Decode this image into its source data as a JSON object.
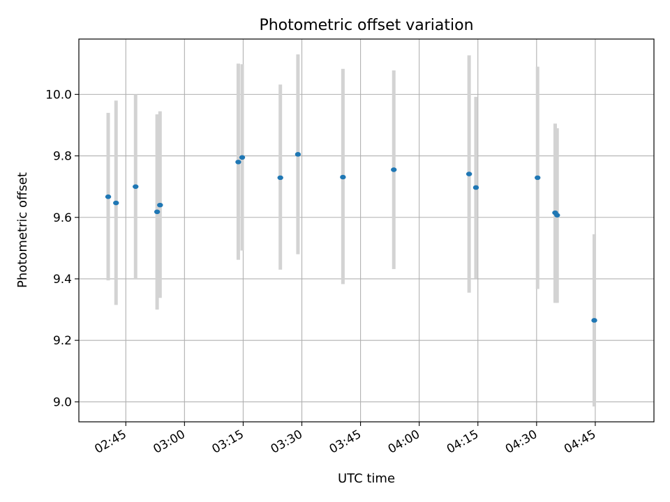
{
  "chart_data": {
    "type": "scatter",
    "title": "Photometric offset variation",
    "xlabel": "UTC time",
    "ylabel": "Photometric offset",
    "xlim": [
      "02:33",
      "05:00"
    ],
    "ylim": [
      8.935,
      10.18
    ],
    "x_ticks": [
      "02:45",
      "03:00",
      "03:15",
      "03:30",
      "03:45",
      "04:00",
      "04:15",
      "04:30",
      "04:45"
    ],
    "y_ticks": [
      "9.0",
      "9.2",
      "9.4",
      "9.6",
      "9.8",
      "10.0"
    ],
    "grid": true,
    "point_color": "#1f77b4",
    "errorbar_color": "#d3d3d3",
    "points": [
      {
        "time": "02:40:30",
        "y": 9.667,
        "err_low": 9.395,
        "err_high": 9.94
      },
      {
        "time": "02:42:30",
        "y": 9.647,
        "err_low": 9.315,
        "err_high": 9.98
      },
      {
        "time": "02:47:30",
        "y": 9.7,
        "err_low": 9.4,
        "err_high": 10.0
      },
      {
        "time": "02:53:00",
        "y": 9.618,
        "err_low": 9.3,
        "err_high": 9.935
      },
      {
        "time": "02:53:45",
        "y": 9.64,
        "err_low": 9.338,
        "err_high": 9.945
      },
      {
        "time": "03:13:45",
        "y": 9.78,
        "err_low": 9.462,
        "err_high": 10.1
      },
      {
        "time": "03:14:45",
        "y": 9.795,
        "err_low": 9.492,
        "err_high": 10.098
      },
      {
        "time": "03:24:30",
        "y": 9.729,
        "err_low": 9.43,
        "err_high": 10.032
      },
      {
        "time": "03:29:00",
        "y": 9.805,
        "err_low": 9.48,
        "err_high": 10.13
      },
      {
        "time": "03:40:30",
        "y": 9.731,
        "err_low": 9.383,
        "err_high": 10.083
      },
      {
        "time": "03:53:30",
        "y": 9.755,
        "err_low": 9.432,
        "err_high": 10.078
      },
      {
        "time": "04:12:45",
        "y": 9.741,
        "err_low": 9.355,
        "err_high": 10.127
      },
      {
        "time": "04:14:30",
        "y": 9.697,
        "err_low": 9.402,
        "err_high": 9.992
      },
      {
        "time": "04:30:15",
        "y": 9.729,
        "err_low": 9.367,
        "err_high": 10.09
      },
      {
        "time": "04:34:45",
        "y": 9.615,
        "err_low": 9.322,
        "err_high": 9.905
      },
      {
        "time": "04:35:15",
        "y": 9.607,
        "err_low": 9.322,
        "err_high": 9.89
      },
      {
        "time": "04:44:45",
        "y": 9.265,
        "err_low": 8.985,
        "err_high": 9.545
      }
    ]
  }
}
